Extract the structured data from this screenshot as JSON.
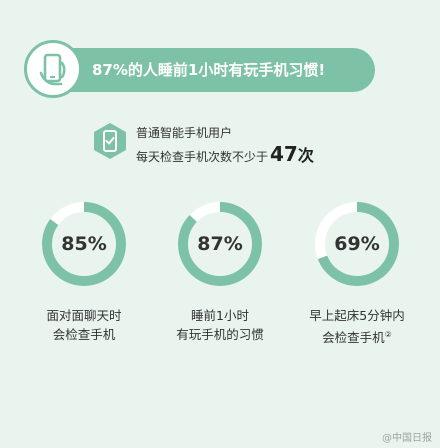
{
  "banner": {
    "title": "87%的人睡前1小时有玩手机习惯!",
    "icon": "phone-icon"
  },
  "stat": {
    "icon": "phone-check-icon",
    "line1": "普通智能手机用户",
    "line2_prefix": "每天检查手机次数不少于",
    "line2_number": "47",
    "line2_unit": "次"
  },
  "colors": {
    "accent": "#7dc2a6",
    "track": "#ffffff",
    "background": "#e9f4ef"
  },
  "rings": [
    {
      "label": "85%",
      "value": 0.85,
      "caption_line1": "面对面聊天时",
      "caption_line2": "会检查手机",
      "note": ""
    },
    {
      "label": "87%",
      "value": 0.87,
      "caption_line1": "睡前1小时",
      "caption_line2": "有玩手机的习惯",
      "note": ""
    },
    {
      "label": "69%",
      "value": 0.69,
      "caption_line1": "早上起床5分钟内",
      "caption_line2": "会检查手机",
      "note": "②"
    }
  ],
  "watermark": "@中国日报"
}
